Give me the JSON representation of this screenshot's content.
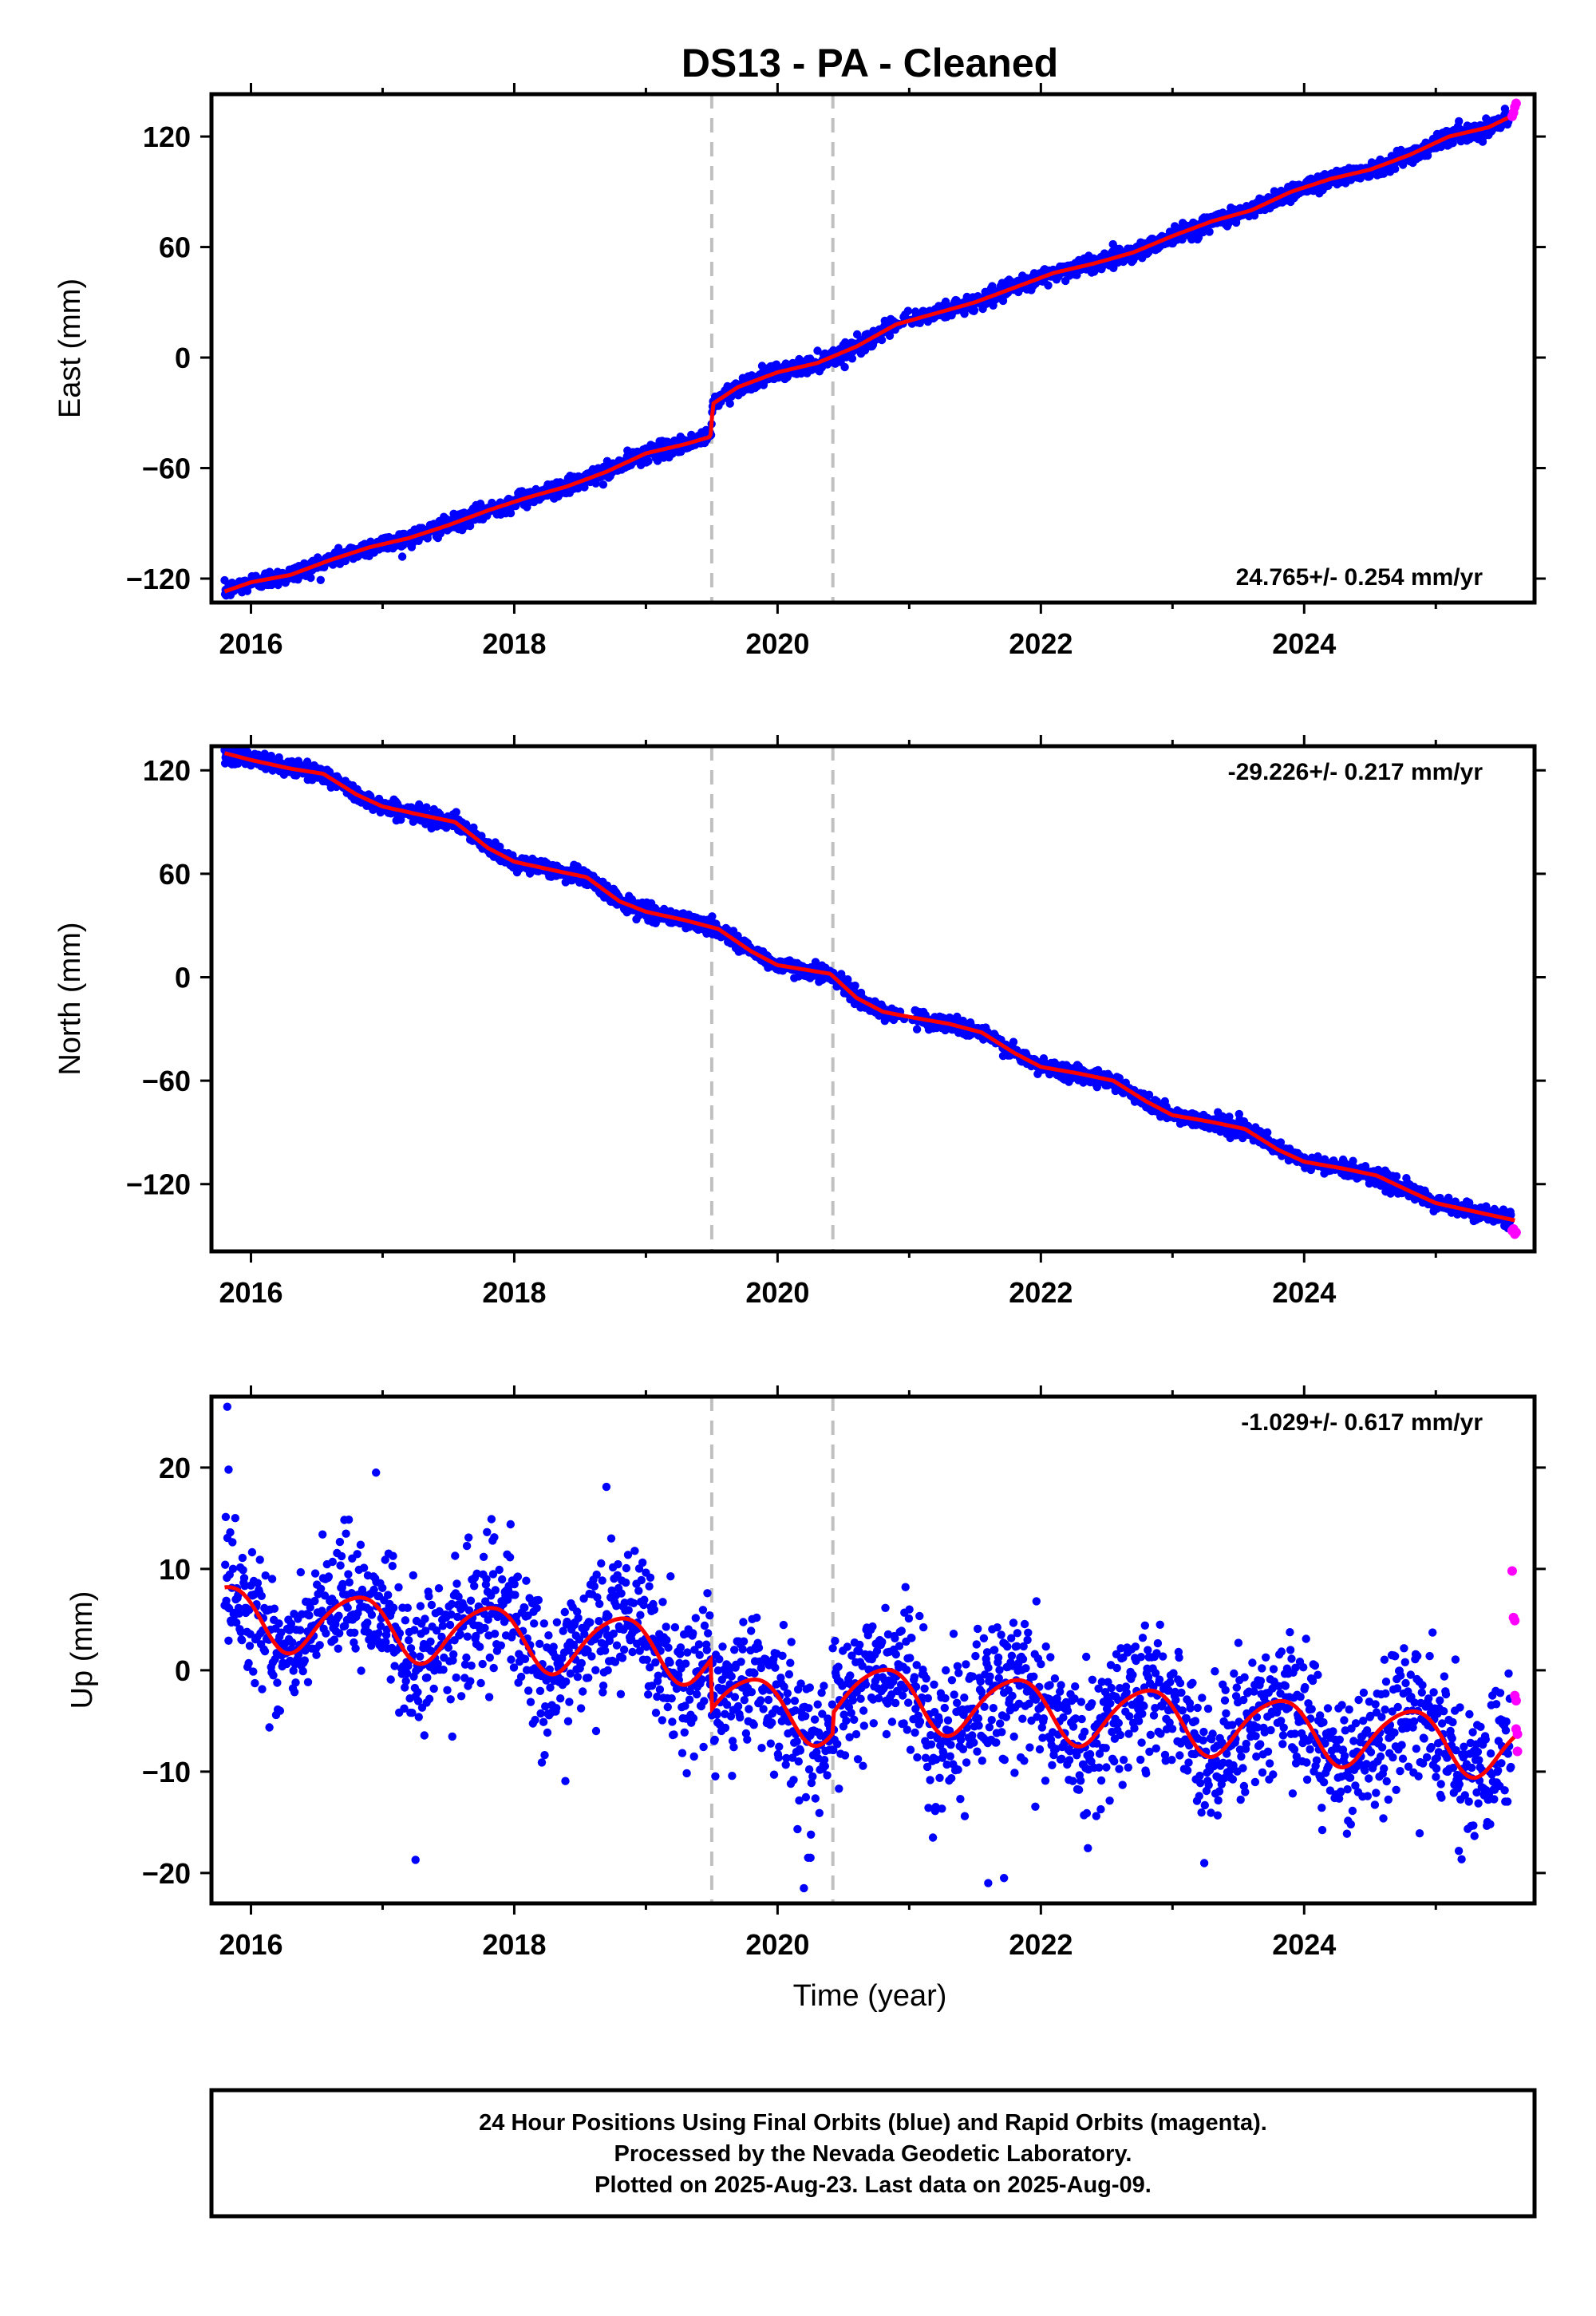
{
  "title": "DS13  - PA - Cleaned",
  "colors": {
    "final_orbits": "#0000ff",
    "rapid_orbits": "#ff00ff",
    "model": "#ff0000",
    "event_lines": "#c0c0c0",
    "frame": "#000000"
  },
  "x_axis": {
    "label": "Time (year)",
    "range": [
      2015.7,
      2025.75
    ],
    "ticks": [
      2016,
      2018,
      2020,
      2022,
      2024
    ],
    "tick_labels": [
      "2016",
      "2018",
      "2020",
      "2022",
      "2024"
    ]
  },
  "event_lines": [
    2019.5,
    2020.42
  ],
  "chart_data": [
    {
      "type": "scatter",
      "component": "East",
      "ylabel": "East (mm)",
      "ylim": [
        -133,
        143
      ],
      "yticks": [
        -120,
        -60,
        0,
        60,
        120
      ],
      "ytick_labels": [
        "−120",
        "−60",
        "0",
        "60",
        "120"
      ],
      "rate": "24.765+/- 0.254 mm/yr",
      "rate_position": "bottom-right",
      "series": [
        {
          "type": "line",
          "x": [
            2015.8,
            2016.0,
            2016.3,
            2016.6,
            2016.9,
            2017.2,
            2017.5,
            2017.8,
            2018.1,
            2018.4,
            2018.7,
            2019.0,
            2019.3,
            2019.49,
            2019.51,
            2019.7,
            2020.0,
            2020.3,
            2020.6,
            2020.9,
            2021.2,
            2021.5,
            2021.8,
            2022.1,
            2022.4,
            2022.7,
            2023.0,
            2023.3,
            2023.6,
            2023.9,
            2024.2,
            2024.5,
            2024.8,
            2025.1,
            2025.4,
            2025.6
          ],
          "y": [
            -127,
            -122,
            -118,
            -110,
            -103,
            -98,
            -91,
            -83,
            -76,
            -70,
            -62,
            -52,
            -47,
            -43,
            -25,
            -16,
            -8,
            -3,
            6,
            18,
            24,
            30,
            38,
            46,
            51,
            57,
            66,
            74,
            80,
            90,
            97,
            102,
            110,
            120,
            125,
            132
          ]
        },
        {
          "type": "band",
          "width": 4
        }
      ],
      "rapid_points": {
        "x": [
          2025.58,
          2025.59,
          2025.6,
          2025.61
        ],
        "y": [
          131,
          133,
          136,
          138
        ]
      }
    },
    {
      "type": "scatter",
      "component": "North",
      "ylabel": "North (mm)",
      "ylim": [
        -159,
        134
      ],
      "yticks": [
        -120,
        -60,
        0,
        60,
        120
      ],
      "ytick_labels": [
        "−120",
        "−60",
        "0",
        "60",
        "120"
      ],
      "rate": "-29.226+/- 0.217 mm/yr",
      "rate_position": "top-right",
      "series": [
        {
          "type": "line",
          "x": [
            2015.8,
            2016.0,
            2016.3,
            2016.55,
            2016.8,
            2017.0,
            2017.3,
            2017.55,
            2017.8,
            2018.0,
            2018.3,
            2018.55,
            2018.8,
            2019.0,
            2019.3,
            2019.55,
            2019.8,
            2020.0,
            2020.4,
            2020.6,
            2020.8,
            2021.0,
            2021.3,
            2021.55,
            2021.8,
            2022.0,
            2022.3,
            2022.55,
            2022.8,
            2023.0,
            2023.3,
            2023.55,
            2023.8,
            2024.0,
            2024.3,
            2024.55,
            2024.8,
            2025.0,
            2025.3,
            2025.6
          ],
          "y": [
            130,
            126,
            121,
            118,
            106,
            99,
            94,
            90,
            75,
            67,
            62,
            58,
            44,
            38,
            33,
            28,
            15,
            7,
            2,
            -12,
            -20,
            -23,
            -27,
            -32,
            -44,
            -52,
            -56,
            -60,
            -72,
            -80,
            -84,
            -88,
            -100,
            -107,
            -111,
            -115,
            -124,
            -131,
            -136,
            -141
          ]
        },
        {
          "type": "band",
          "width": 4
        }
      ],
      "rapid_points": {
        "x": [
          2025.58,
          2025.59,
          2025.6,
          2025.61
        ],
        "y": [
          -147,
          -146,
          -149,
          -148
        ]
      }
    },
    {
      "type": "scatter",
      "component": "Up",
      "ylabel": "Up (mm)",
      "ylim": [
        -23,
        27
      ],
      "yticks": [
        -20,
        -10,
        0,
        10,
        20
      ],
      "ytick_labels": [
        "−20",
        "−10",
        "0",
        "10",
        "20"
      ],
      "rate": "-1.029+/- 0.617 mm/yr",
      "rate_position": "top-right",
      "series": [
        {
          "type": "line",
          "name": "",
          "seasonal": {
            "amplitude": 3.0,
            "annual_phase": 0.8,
            "semiannual_amplitude": 0.4
          }
        },
        {
          "type": "scatter",
          "noise_sd": 3.5
        }
      ],
      "model_offsets": [
        {
          "from": 2015.7,
          "to": 2019.5,
          "offset": 5.5
        },
        {
          "from": 2019.5,
          "to": 2020.42,
          "offset": 0.5
        },
        {
          "from": 2020.42,
          "to": 2025.75,
          "offset": 2.5
        }
      ],
      "rapid_points": {
        "x": [
          2025.58,
          2025.59,
          2025.6,
          2025.6,
          2025.61,
          2025.61,
          2025.62,
          2025.62
        ],
        "y": [
          9.8,
          5.2,
          4.9,
          -2.5,
          -3.0,
          -5.8,
          -6.3,
          -8.0
        ]
      },
      "outliers": {
        "x": [
          2015.82,
          2015.83,
          2016.95,
          2017.25,
          2018.7,
          2020.2,
          2020.25,
          2021.6,
          2021.72
        ],
        "y": [
          26,
          19.8,
          19.5,
          -18.7,
          18.1,
          -21.5,
          -18.5,
          -21.0,
          -20.5
        ]
      }
    }
  ],
  "footer": {
    "line1": "24 Hour Positions Using Final Orbits (blue) and Rapid Orbits (magenta).",
    "line2": "Processed by the Nevada Geodetic Laboratory.",
    "line3": "Plotted on 2025-Aug-23. Last data on 2025-Aug-09."
  }
}
